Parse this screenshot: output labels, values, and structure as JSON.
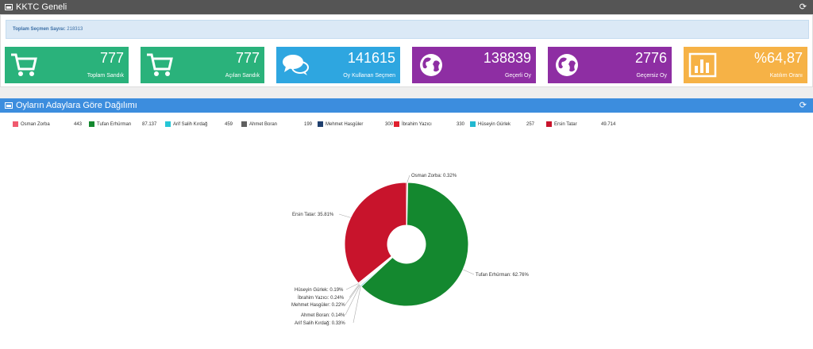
{
  "panel1": {
    "title": "KKTC Geneli",
    "voter_label": "Toplam Seçmen Sayısı:",
    "voter_value": "218313"
  },
  "tiles": [
    {
      "value": "777",
      "label": "Toplam Sandık",
      "color": "#2ab27b",
      "icon": "cart-icon"
    },
    {
      "value": "777",
      "label": "Açılan Sandık",
      "color": "#2ab27b",
      "icon": "cart-icon"
    },
    {
      "value": "141615",
      "label": "Oy Kullanan Seçmen",
      "color": "#2ea6e0",
      "icon": "chat-bubbles-icon"
    },
    {
      "value": "138839",
      "label": "Geçerli Oy",
      "color": "#8e2ea3",
      "icon": "globe-icon"
    },
    {
      "value": "2776",
      "label": "Geçersiz Oy",
      "color": "#8e2ea3",
      "icon": "globe-icon"
    },
    {
      "value": "%64,87",
      "label": "Katılım Oranı",
      "color": "#f6b246",
      "icon": "bar-chart-icon"
    }
  ],
  "panel2": {
    "title": "Oyların Adaylara Göre Dağılımı"
  },
  "chart_data": {
    "type": "pie",
    "donut": true,
    "legend_position": "top",
    "series": [
      {
        "name": "Osman Zorba",
        "votes": "443",
        "percent": 0.32,
        "label": "Osman Zorba: 0.32%",
        "color": "#f05a6e"
      },
      {
        "name": "Tufan Erhürman",
        "votes": "87.137",
        "percent": 62.76,
        "label": "Tufan Erhürman: 62.76%",
        "color": "#14882f"
      },
      {
        "name": "Arif Salih Kırdağ",
        "votes": "459",
        "percent": 0.33,
        "label": "Arif Salih Kırdağ: 0.33%",
        "color": "#26c6d6"
      },
      {
        "name": "Ahmet Boran",
        "votes": "199",
        "percent": 0.14,
        "label": "Ahmet Boran: 0.14%",
        "color": "#606060"
      },
      {
        "name": "Mehmet Hasgüler",
        "votes": "300",
        "percent": 0.22,
        "label": "Mehmet Hasgüler: 0.22%",
        "color": "#1f3f6e"
      },
      {
        "name": "İbrahim Yazıcı",
        "votes": "330",
        "percent": 0.24,
        "label": "İbrahim Yazıcı: 0.24%",
        "color": "#e0202e"
      },
      {
        "name": "Hüseyin Gürlek",
        "votes": "257",
        "percent": 0.19,
        "label": "Hüseyin Gürlek: 0.19%",
        "color": "#22b8d0"
      },
      {
        "name": "Ersin Tatar",
        "votes": "49.714",
        "percent": 35.81,
        "label": "Ersin Tatar: 35.81%",
        "color": "#c8142c"
      }
    ]
  }
}
